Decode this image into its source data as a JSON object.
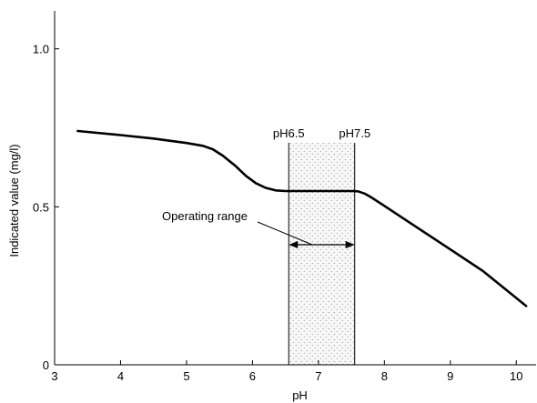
{
  "chart_data": {
    "type": "line",
    "xlabel": "pH",
    "ylabel": "Indicated value (mg/l)",
    "xlim": [
      3,
      10.3
    ],
    "ylim": [
      0,
      1.12
    ],
    "x_ticks": [
      3,
      4,
      5,
      6,
      7,
      8,
      9,
      10
    ],
    "y_ticks": [
      0,
      0.5,
      1.0
    ],
    "y_tick_labels": [
      "0",
      "0.5",
      "1.0"
    ],
    "series": [
      {
        "x": [
          3.35,
          4.0,
          4.5,
          5.0,
          5.25,
          5.4,
          5.55,
          5.75,
          5.9,
          6.05,
          6.2,
          6.35,
          6.5,
          6.8,
          7.2,
          7.5,
          7.6,
          7.7,
          7.8,
          8.0,
          8.5,
          9.0,
          9.5,
          10.15
        ],
        "y": [
          0.74,
          0.727,
          0.716,
          0.702,
          0.693,
          0.682,
          0.662,
          0.628,
          0.598,
          0.575,
          0.56,
          0.552,
          0.55,
          0.55,
          0.55,
          0.55,
          0.549,
          0.542,
          0.53,
          0.503,
          0.434,
          0.365,
          0.296,
          0.186
        ]
      }
    ],
    "operating_range": {
      "x": [
        6.55,
        7.55
      ],
      "left_label": "pH6.5",
      "right_label": "pH7.5",
      "annotation": "Operating range",
      "fill": "#f7f7f7"
    },
    "line_color": "#000000"
  }
}
